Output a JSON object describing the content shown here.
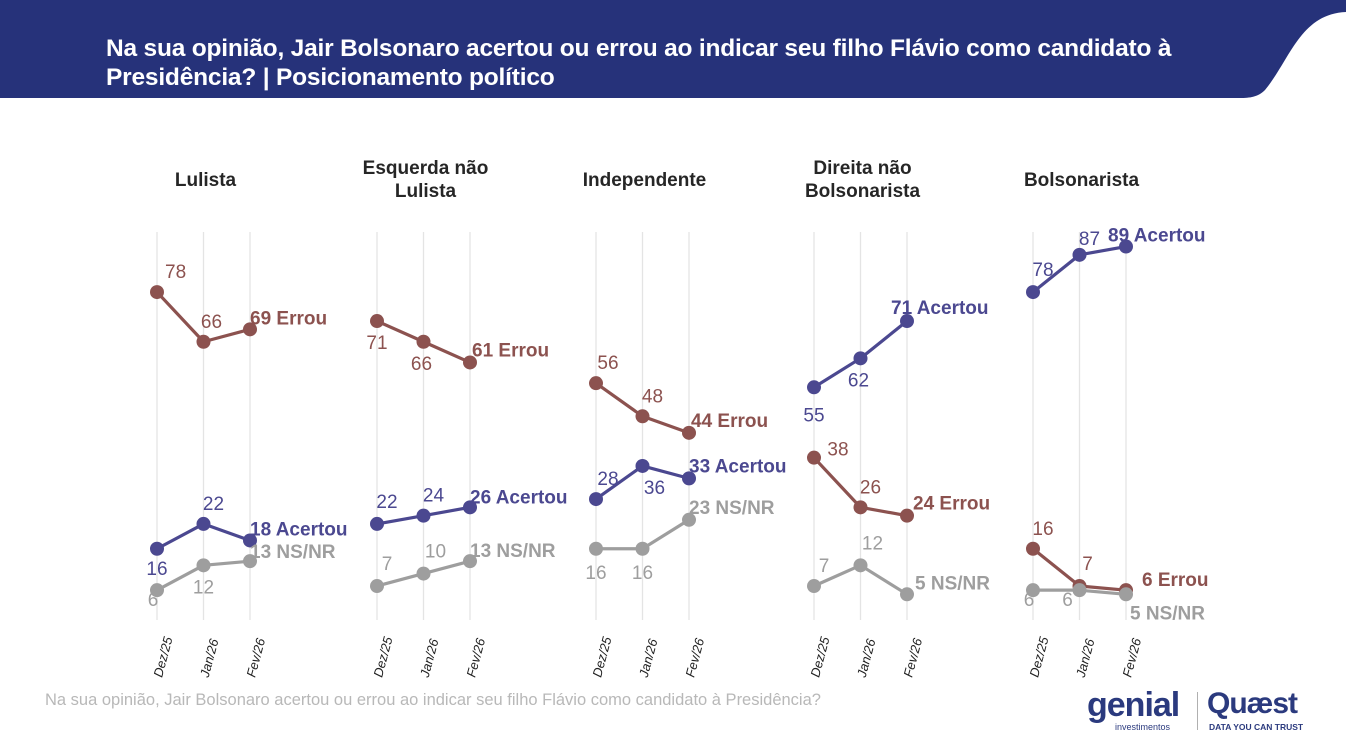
{
  "header": {
    "title": "Na sua opinião, Jair Bolsonaro acertou ou errou ao indicar seu filho Flávio como candidato à Presidência? | Posicionamento político",
    "banner_color": "#26327a"
  },
  "footer": {
    "footnote": "Na sua opinião, Jair Bolsonaro acertou ou errou ao indicar seu filho Flávio como candidato à Presidência?",
    "logo_genial": "genial",
    "logo_genial_sub": "investimentos",
    "logo_quaest": "Quæst",
    "logo_quaest_sub": "DATA YOU CAN TRUST"
  },
  "colors": {
    "acertou": "#4b4890",
    "errou": "#8c524f",
    "nsnr": "#9e9e9e",
    "grid": "#e4e4e4"
  },
  "chart_data": {
    "type": "line",
    "title": "Na sua opinião, Jair Bolsonaro acertou ou errou ao indicar seu filho Flávio como candidato à Presidência? | Posicionamento político",
    "x": [
      "Dez/25",
      "Jan/26",
      "Fev/26"
    ],
    "ylim": [
      0,
      100
    ],
    "grid": "vertical",
    "panels": [
      {
        "name": "Lulista",
        "title_lines": [
          "Lulista"
        ],
        "series": [
          {
            "name": "Errou",
            "key": "errou",
            "values": [
              78,
              66,
              69
            ],
            "end_label": "69 Errou"
          },
          {
            "name": "Acertou",
            "key": "acertou",
            "values": [
              16,
              22,
              18
            ],
            "end_label": "18 Acertou"
          },
          {
            "name": "NS/NR",
            "key": "nsnr",
            "values": [
              6,
              12,
              13
            ],
            "end_label": "13 NS/NR"
          }
        ]
      },
      {
        "name": "Esquerda não Lulista",
        "title_lines": [
          "Esquerda não",
          "Lulista"
        ],
        "series": [
          {
            "name": "Errou",
            "key": "errou",
            "values": [
              71,
              66,
              61
            ],
            "end_label": "61 Errou"
          },
          {
            "name": "Acertou",
            "key": "acertou",
            "values": [
              22,
              24,
              26
            ],
            "end_label": "26 Acertou"
          },
          {
            "name": "NS/NR",
            "key": "nsnr",
            "values": [
              7,
              10,
              13
            ],
            "end_label": "13 NS/NR"
          }
        ]
      },
      {
        "name": "Independente",
        "title_lines": [
          "Independente"
        ],
        "series": [
          {
            "name": "Errou",
            "key": "errou",
            "values": [
              56,
              48,
              44
            ],
            "end_label": "44 Errou"
          },
          {
            "name": "Acertou",
            "key": "acertou",
            "values": [
              28,
              36,
              33
            ],
            "end_label": "33 Acertou"
          },
          {
            "name": "NS/NR",
            "key": "nsnr",
            "values": [
              16,
              16,
              23
            ],
            "end_label": "23 NS/NR"
          }
        ]
      },
      {
        "name": "Direita não Bolsonarista",
        "title_lines": [
          "Direita não",
          "Bolsonarista"
        ],
        "series": [
          {
            "name": "Acertou",
            "key": "acertou",
            "values": [
              55,
              62,
              71
            ],
            "end_label": "71 Acertou"
          },
          {
            "name": "Errou",
            "key": "errou",
            "values": [
              38,
              26,
              24
            ],
            "end_label": "24 Errou"
          },
          {
            "name": "NS/NR",
            "key": "nsnr",
            "values": [
              7,
              12,
              5
            ],
            "end_label": "5 NS/NR"
          }
        ]
      },
      {
        "name": "Bolsonarista",
        "title_lines": [
          "Bolsonarista"
        ],
        "series": [
          {
            "name": "Acertou",
            "key": "acertou",
            "values": [
              78,
              87,
              89
            ],
            "end_label": "89 Acertou"
          },
          {
            "name": "Errou",
            "key": "errou",
            "values": [
              16,
              7,
              6
            ],
            "end_label": "6 Errou"
          },
          {
            "name": "NS/NR",
            "key": "nsnr",
            "values": [
              6,
              6,
              5
            ],
            "end_label": "5 NS/NR"
          }
        ]
      }
    ]
  }
}
